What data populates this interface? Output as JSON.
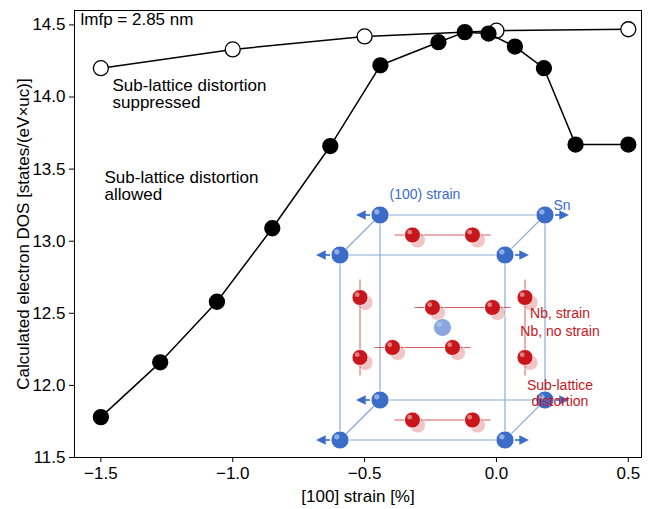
{
  "chart_data": {
    "type": "line",
    "x_label": "[100] strain [%]",
    "y_label": "Calculated electron DOS [states/(eV×uc)]",
    "xlim": [
      -1.6,
      0.55
    ],
    "xticks": [
      -1.5,
      -1,
      -0.5,
      0,
      0.5
    ],
    "ylim": [
      11.5,
      14.6
    ],
    "yticks": [
      11.5,
      12,
      12.5,
      13,
      13.5,
      14,
      14.5
    ],
    "grid": false,
    "series": [
      {
        "color": "#000000",
        "marker": "circle-open",
        "x": [
          -1.5,
          -1,
          -0.5,
          0,
          0.5
        ],
        "values": [
          14.2,
          14.33,
          14.42,
          14.46,
          14.47
        ]
      },
      {
        "color": "#000000",
        "marker": "circle",
        "x": [
          -1.5,
          -1.275,
          -1.06,
          -0.85,
          -0.63,
          -0.44,
          -0.22,
          -0.12,
          -0.03,
          0.07,
          0.18,
          0.3,
          0.5
        ],
        "values": [
          11.78,
          12.16,
          12.58,
          13.09,
          13.66,
          14.22,
          14.38,
          14.45,
          14.44,
          14.35,
          14.2,
          13.67,
          13.67
        ]
      }
    ],
    "annotations": [
      {
        "lines": [
          "lmfp = 2.85 nm"
        ]
      },
      {
        "lines": [
          "Sub-lattice distortion",
          "suppressed"
        ]
      },
      {
        "lines": [
          "Sub-lattice distortion",
          "allowed"
        ]
      }
    ],
    "inset": {
      "strain_label": "(100) strain",
      "sn_label": "Sn",
      "nb_strain_label": "Nb, strain",
      "nb_no_strain_label": "Nb, no strain",
      "distortion_label": [
        "Sub-lattice",
        "distortion"
      ],
      "sn_color": "#3a6cc8",
      "nb_color": "#c8161d"
    }
  }
}
